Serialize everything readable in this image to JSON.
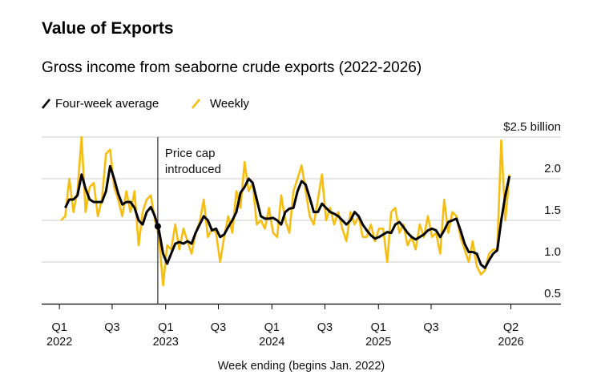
{
  "title": "Value of Exports",
  "subtitle": "Gross income from seaborne crude exports (2022-2026)",
  "legend": [
    {
      "label": "Four-week average",
      "color": "#000000",
      "icon": "black-line-icon"
    },
    {
      "label": "Weekly",
      "color": "#F7BE12",
      "icon": "yellow-line-icon"
    }
  ],
  "chart_data": {
    "type": "line",
    "title": "Value of Exports",
    "subtitle": "Gross income from seaborne crude exports (2022-2026)",
    "xlabel": "Week ending (begins Jan. 2022)",
    "ylabel": "",
    "y_unit_label": "$2.5 billion",
    "ylim": [
      0.5,
      2.5
    ],
    "y_ticks": [
      0.5,
      1.0,
      1.5,
      2.0,
      2.5
    ],
    "y_tick_labels": [
      "0.5",
      "1.0",
      "1.5",
      "2.0",
      "$2.5 billion"
    ],
    "xlim": [
      "2021-11-01",
      "2026-09-20"
    ],
    "x_ticks": [
      {
        "date": "2022-01-01",
        "q": "Q1",
        "year": "2022"
      },
      {
        "date": "2022-07-01",
        "q": "Q3",
        "year": ""
      },
      {
        "date": "2023-01-01",
        "q": "Q1",
        "year": "2023"
      },
      {
        "date": "2023-07-01",
        "q": "Q3",
        "year": ""
      },
      {
        "date": "2024-01-01",
        "q": "Q1",
        "year": "2024"
      },
      {
        "date": "2024-07-01",
        "q": "Q3",
        "year": ""
      },
      {
        "date": "2025-01-01",
        "q": "Q1",
        "year": "2025"
      },
      {
        "date": "2025-07-01",
        "q": "Q3",
        "year": ""
      },
      {
        "date": "2026-04-01",
        "q": "Q2",
        "year": "2026"
      }
    ],
    "grid": "horizontal",
    "legend_position": "top-left",
    "annotation": {
      "date": "2022-12-05",
      "line1": "Price cap",
      "line2": "introduced"
    },
    "x": [
      "2022-01-07",
      "2022-01-21",
      "2022-02-04",
      "2022-02-18",
      "2022-03-04",
      "2022-03-18",
      "2022-04-01",
      "2022-04-15",
      "2022-04-29",
      "2022-05-13",
      "2022-05-27",
      "2022-06-10",
      "2022-06-24",
      "2022-07-08",
      "2022-07-22",
      "2022-08-05",
      "2022-08-19",
      "2022-09-02",
      "2022-09-16",
      "2022-09-30",
      "2022-10-14",
      "2022-10-28",
      "2022-11-11",
      "2022-11-25",
      "2022-12-09",
      "2022-12-23",
      "2023-01-06",
      "2023-01-20",
      "2023-02-03",
      "2023-02-17",
      "2023-03-03",
      "2023-03-17",
      "2023-03-31",
      "2023-04-14",
      "2023-04-28",
      "2023-05-12",
      "2023-05-26",
      "2023-06-09",
      "2023-06-23",
      "2023-07-07",
      "2023-07-21",
      "2023-08-04",
      "2023-08-18",
      "2023-09-01",
      "2023-09-15",
      "2023-09-29",
      "2023-10-13",
      "2023-10-27",
      "2023-11-10",
      "2023-11-24",
      "2023-12-08",
      "2023-12-22",
      "2024-01-05",
      "2024-01-19",
      "2024-02-02",
      "2024-02-16",
      "2024-03-01",
      "2024-03-15",
      "2024-03-29",
      "2024-04-12",
      "2024-04-26",
      "2024-05-10",
      "2024-05-24",
      "2024-06-07",
      "2024-06-21",
      "2024-07-05",
      "2024-07-19",
      "2024-08-02",
      "2024-08-16",
      "2024-08-30",
      "2024-09-13",
      "2024-09-27",
      "2024-10-11",
      "2024-10-25",
      "2024-11-08",
      "2024-11-22",
      "2024-12-06",
      "2024-12-20",
      "2025-01-03",
      "2025-01-17",
      "2025-01-31",
      "2025-02-14",
      "2025-02-28",
      "2025-03-14",
      "2025-03-28",
      "2025-04-11",
      "2025-04-25",
      "2025-05-09",
      "2025-05-23",
      "2025-06-06",
      "2025-06-20",
      "2025-07-04",
      "2025-07-18",
      "2025-08-01",
      "2025-08-15",
      "2025-08-29",
      "2025-09-12",
      "2025-09-26",
      "2025-10-10",
      "2025-10-24",
      "2025-11-07",
      "2025-11-21",
      "2025-12-05",
      "2025-12-19",
      "2026-01-02",
      "2026-01-16",
      "2026-01-30",
      "2026-02-13",
      "2026-02-27",
      "2026-03-13",
      "2026-03-27"
    ],
    "series": [
      {
        "name": "Weekly",
        "color": "#F7BE12",
        "values": [
          1.5,
          1.55,
          2.0,
          1.6,
          1.85,
          2.5,
          1.6,
          1.9,
          1.95,
          1.55,
          1.75,
          2.3,
          2.35,
          1.9,
          1.75,
          1.55,
          1.85,
          1.6,
          1.85,
          1.2,
          1.6,
          1.75,
          1.8,
          1.5,
          1.3,
          0.72,
          1.2,
          1.15,
          1.45,
          1.15,
          1.4,
          1.25,
          1.1,
          1.35,
          1.48,
          1.75,
          1.3,
          1.4,
          1.35,
          1.0,
          1.3,
          1.55,
          1.35,
          1.85,
          1.65,
          2.2,
          1.85,
          1.95,
          1.45,
          1.5,
          1.4,
          1.65,
          1.35,
          1.3,
          1.8,
          1.5,
          1.35,
          1.85,
          2.0,
          2.16,
          1.85,
          1.55,
          1.45,
          1.75,
          2.05,
          1.5,
          1.65,
          1.45,
          1.6,
          1.4,
          1.25,
          1.6,
          1.45,
          1.55,
          1.3,
          1.3,
          1.45,
          1.25,
          1.4,
          1.4,
          1.0,
          1.6,
          1.65,
          1.35,
          1.45,
          1.2,
          1.3,
          1.15,
          1.45,
          1.3,
          1.55,
          1.3,
          1.35,
          1.1,
          1.75,
          1.35,
          1.6,
          1.55,
          1.3,
          1.15,
          1.0,
          1.25,
          0.95,
          0.85,
          0.9,
          1.1,
          1.15,
          1.15,
          2.46,
          1.5,
          2.05
        ]
      },
      {
        "name": "Four-week average",
        "color": "#000000",
        "values": [
          null,
          1.65,
          1.75,
          1.75,
          1.8,
          2.05,
          1.88,
          1.75,
          1.72,
          1.72,
          1.72,
          1.85,
          2.15,
          2.0,
          1.82,
          1.69,
          1.72,
          1.72,
          1.65,
          1.5,
          1.45,
          1.6,
          1.66,
          1.55,
          1.38,
          1.1,
          0.98,
          1.1,
          1.22,
          1.24,
          1.22,
          1.25,
          1.22,
          1.35,
          1.45,
          1.55,
          1.5,
          1.38,
          1.4,
          1.3,
          1.33,
          1.42,
          1.5,
          1.6,
          1.83,
          1.9,
          2.0,
          1.95,
          1.75,
          1.55,
          1.52,
          1.52,
          1.53,
          1.5,
          1.45,
          1.6,
          1.64,
          1.65,
          1.85,
          1.97,
          1.93,
          1.77,
          1.6,
          1.6,
          1.7,
          1.65,
          1.6,
          1.58,
          1.55,
          1.5,
          1.45,
          1.5,
          1.6,
          1.55,
          1.45,
          1.38,
          1.32,
          1.28,
          1.3,
          1.33,
          1.36,
          1.35,
          1.45,
          1.48,
          1.42,
          1.35,
          1.3,
          1.27,
          1.3,
          1.33,
          1.38,
          1.4,
          1.38,
          1.3,
          1.38,
          1.48,
          1.5,
          1.52,
          1.38,
          1.22,
          1.12,
          1.12,
          1.1,
          0.97,
          0.93,
          1.02,
          1.1,
          1.14,
          1.5,
          1.8,
          2.03
        ]
      }
    ]
  }
}
